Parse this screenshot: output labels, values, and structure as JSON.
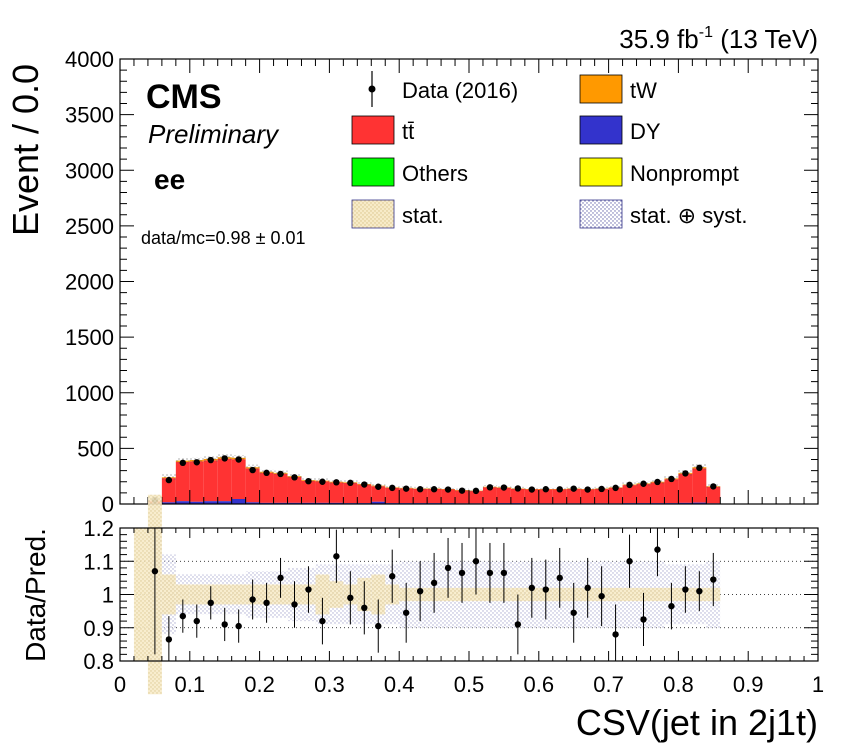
{
  "header": {
    "lumi": "35.9 fb",
    "lumi_exp": "-1",
    "energy": " (13 TeV)"
  },
  "labels": {
    "experiment": "CMS",
    "status": "Preliminary",
    "channel": "ee",
    "ratio_text": "data/mc=0.98 ± 0.01"
  },
  "legend": {
    "items": [
      {
        "label": "Data (2016)",
        "kind": "data",
        "color": "#000000"
      },
      {
        "label": "tW",
        "kind": "fill",
        "color": "#ff9900"
      },
      {
        "label": "tt̄",
        "kind": "fill",
        "color": "#ff3333"
      },
      {
        "label": "DY",
        "kind": "fill",
        "color": "#3333cc"
      },
      {
        "label": "Others",
        "kind": "fill",
        "color": "#00ff00"
      },
      {
        "label": "Nonprompt",
        "kind": "fill",
        "color": "#ffff00"
      },
      {
        "label": "stat.",
        "kind": "hatch",
        "color": "#f5deb3"
      },
      {
        "label": "stat. ⊕ syst.",
        "kind": "hatch",
        "color": "#6666aa"
      }
    ]
  },
  "chart_data": {
    "type": "bar",
    "xlabel": "CSV(jet in 2j1t)",
    "ylabel": "Event / 0.0",
    "ratio_ylabel": "Data/Pred.",
    "xlim": [
      0,
      1
    ],
    "ylim": [
      0,
      4000
    ],
    "ratio_ylim": [
      0.8,
      1.2
    ],
    "x_ticks": [
      "0",
      "0.1",
      "0.2",
      "0.3",
      "0.4",
      "0.5",
      "0.6",
      "0.7",
      "0.8",
      "0.9",
      "1"
    ],
    "y_ticks": [
      "0",
      "500",
      "1000",
      "1500",
      "2000",
      "2500",
      "3000",
      "3500",
      "4000"
    ],
    "ratio_y_ticks": [
      "0.8",
      "0.9",
      "1",
      "1.1",
      "1.2"
    ],
    "bin_width": 0.02,
    "bin_low_edges": [
      0.04,
      0.06,
      0.08,
      0.1,
      0.12,
      0.14,
      0.16,
      0.18,
      0.2,
      0.22,
      0.24,
      0.26,
      0.28,
      0.3,
      0.32,
      0.34,
      0.36,
      0.38,
      0.4,
      0.42,
      0.44,
      0.46,
      0.48,
      0.5,
      0.52,
      0.54,
      0.56,
      0.58,
      0.6,
      0.62,
      0.64,
      0.66,
      0.68,
      0.7,
      0.72,
      0.74,
      0.76,
      0.78,
      0.8,
      0.82,
      0.84
    ],
    "stack_total": [
      30,
      240,
      390,
      395,
      405,
      420,
      415,
      330,
      290,
      280,
      250,
      215,
      210,
      200,
      195,
      180,
      165,
      150,
      145,
      140,
      140,
      135,
      125,
      120,
      155,
      150,
      140,
      135,
      135,
      135,
      140,
      135,
      140,
      150,
      175,
      185,
      200,
      230,
      280,
      330,
      160
    ],
    "series_dy": [
      0,
      15,
      25,
      20,
      25,
      25,
      45,
      15,
      10,
      10,
      10,
      10,
      10,
      10,
      8,
      8,
      20,
      8,
      8,
      8,
      8,
      8,
      6,
      6,
      8,
      8,
      8,
      6,
      6,
      6,
      6,
      6,
      6,
      6,
      8,
      8,
      8,
      8,
      10,
      12,
      6
    ],
    "data_values": [
      35,
      215,
      370,
      375,
      395,
      410,
      400,
      305,
      280,
      270,
      240,
      205,
      200,
      195,
      190,
      175,
      155,
      145,
      138,
      133,
      133,
      130,
      120,
      118,
      150,
      148,
      140,
      130,
      133,
      132,
      138,
      130,
      135,
      145,
      172,
      182,
      198,
      225,
      275,
      325,
      158
    ],
    "ratio_values": [
      1.07,
      0.865,
      0.935,
      0.92,
      0.975,
      0.91,
      0.905,
      0.985,
      0.975,
      1.05,
      0.97,
      1.015,
      0.92,
      1.115,
      0.99,
      0.96,
      0.905,
      1.055,
      0.945,
      1.01,
      1.035,
      1.08,
      1.065,
      1.1,
      1.065,
      1.065,
      0.91,
      1.02,
      1.015,
      1.05,
      0.945,
      1.02,
      0.995,
      0.88,
      1.1,
      0.925,
      1.135,
      0.965,
      1.015,
      1.01,
      1.045
    ],
    "ratio_errors": [
      0.25,
      0.07,
      0.05,
      0.05,
      0.05,
      0.05,
      0.05,
      0.06,
      0.06,
      0.06,
      0.07,
      0.07,
      0.07,
      0.08,
      0.08,
      0.08,
      0.08,
      0.08,
      0.09,
      0.09,
      0.09,
      0.09,
      0.09,
      0.1,
      0.09,
      0.09,
      0.09,
      0.09,
      0.09,
      0.09,
      0.09,
      0.09,
      0.09,
      0.09,
      0.08,
      0.08,
      0.08,
      0.07,
      0.07,
      0.06,
      0.08
    ],
    "syst_band": [
      0.3,
      0.12,
      0.06,
      0.06,
      0.06,
      0.06,
      0.06,
      0.07,
      0.07,
      0.07,
      0.08,
      0.08,
      0.09,
      0.09,
      0.09,
      0.09,
      0.09,
      0.09,
      0.1,
      0.1,
      0.1,
      0.1,
      0.1,
      0.1,
      0.1,
      0.1,
      0.1,
      0.1,
      0.1,
      0.1,
      0.1,
      0.1,
      0.1,
      0.1,
      0.1,
      0.1,
      0.1,
      0.09,
      0.09,
      0.09,
      0.1
    ],
    "stat_band": [
      0.3,
      0.06,
      0.03,
      0.03,
      0.03,
      0.03,
      0.03,
      0.03,
      0.03,
      0.03,
      0.03,
      0.03,
      0.06,
      0.04,
      0.03,
      0.05,
      0.06,
      0.03,
      0.02,
      0.02,
      0.02,
      0.02,
      0.02,
      0.02,
      0.02,
      0.02,
      0.02,
      0.02,
      0.02,
      0.02,
      0.02,
      0.02,
      0.02,
      0.02,
      0.02,
      0.02,
      0.02,
      0.02,
      0.02,
      0.02,
      0.02
    ]
  }
}
